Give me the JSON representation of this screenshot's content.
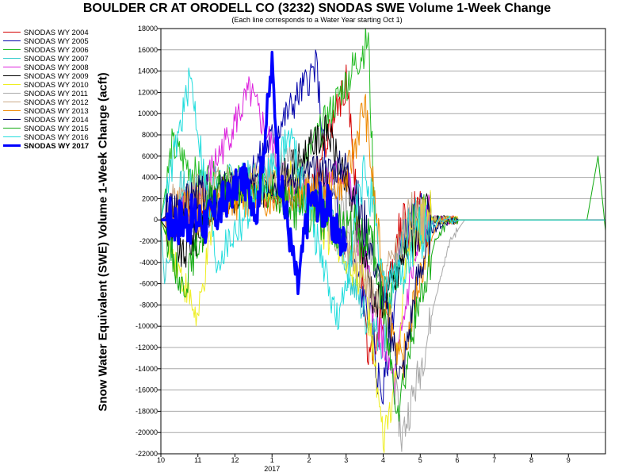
{
  "chart_data": {
    "type": "line",
    "title": "BOULDER CR AT ORODELL CO (3232) SNODAS SWE Volume 1-Week Change",
    "subtitle": "(Each line corresponds to a Water Year starting Oct 1)",
    "ylabel": "Snow Water Equivalent (SWE) Volume 1-Week Change (acft)",
    "xlabel": "",
    "ylim": [
      -22000,
      18000
    ],
    "y_ticks": [
      18000,
      16000,
      14000,
      12000,
      10000,
      8000,
      6000,
      4000,
      2000,
      0,
      -2000,
      -4000,
      -6000,
      -8000,
      -10000,
      -12000,
      -14000,
      -16000,
      -18000,
      -20000,
      -22000
    ],
    "y_tick_labels": [
      "18000",
      "16000",
      "14000",
      "12000",
      "10000",
      "8000",
      "6000",
      "4000",
      "2000",
      "0",
      "-2000",
      "-4000",
      "-6000",
      "-8000",
      "-10000",
      "-12000",
      "-14000",
      "-16000",
      "-18000",
      "-20000",
      "-22000"
    ],
    "xlim": [
      10,
      22
    ],
    "x_ticks": [
      10,
      11,
      12,
      13,
      14,
      15,
      16,
      17,
      18,
      19,
      20,
      21
    ],
    "x_tick_labels": [
      "10",
      "11",
      "12",
      "1",
      "2",
      "3",
      "4",
      "5",
      "6",
      "7",
      "8",
      "9"
    ],
    "x_year_label": "2017",
    "x_year_label_at": 13,
    "grid": true,
    "legend_placement": "left-outside",
    "series": [
      {
        "name": "SNODAS WY 2004",
        "color": "#d40000",
        "seed": 4,
        "key_points": [
          [
            10,
            0
          ],
          [
            12,
            3000
          ],
          [
            14,
            2500
          ],
          [
            15,
            12800
          ],
          [
            15.2,
            6000
          ],
          [
            15.6,
            -13500
          ],
          [
            16,
            -9000
          ],
          [
            16.4,
            -1500
          ],
          [
            16.8,
            0
          ],
          [
            22,
            0
          ]
        ]
      },
      {
        "name": "SNODAS WY 2005",
        "color": "#0000aa",
        "seed": 5,
        "key_points": [
          [
            10,
            0
          ],
          [
            12,
            2000
          ],
          [
            14.2,
            14500
          ],
          [
            14.5,
            3000
          ],
          [
            15.7,
            -10000
          ],
          [
            15.8,
            -14000
          ],
          [
            16,
            -16500
          ],
          [
            16.5,
            -2000
          ],
          [
            17,
            0
          ],
          [
            22,
            0
          ]
        ]
      },
      {
        "name": "SNODAS WY 2006",
        "color": "#22bb22",
        "seed": 6,
        "key_points": [
          [
            10,
            0
          ],
          [
            10.3,
            7000
          ],
          [
            11,
            4000
          ],
          [
            13.5,
            3000
          ],
          [
            15.6,
            17000
          ],
          [
            15.8,
            -4000
          ],
          [
            16.2,
            -8000
          ],
          [
            16.6,
            -1000
          ],
          [
            17,
            0
          ],
          [
            22,
            0
          ]
        ]
      },
      {
        "name": "SNODAS WY 2007",
        "color": "#33cccc",
        "seed": 7,
        "key_points": [
          [
            10,
            0
          ],
          [
            10.1,
            -6000
          ],
          [
            10.5,
            3000
          ],
          [
            12.5,
            4000
          ],
          [
            14.5,
            1000
          ],
          [
            15.5,
            -9000
          ],
          [
            16,
            -11500
          ],
          [
            16.5,
            -2000
          ],
          [
            17,
            0
          ],
          [
            22,
            0
          ]
        ]
      },
      {
        "name": "SNODAS WY 2008",
        "color": "#dd22dd",
        "seed": 8,
        "key_points": [
          [
            10,
            0
          ],
          [
            11,
            2000
          ],
          [
            12.4,
            12000
          ],
          [
            13.5,
            2500
          ],
          [
            15,
            4500
          ],
          [
            15.8,
            -9000
          ],
          [
            16.3,
            -15500
          ],
          [
            16.7,
            -6000
          ],
          [
            17.2,
            0
          ],
          [
            22,
            0
          ]
        ]
      },
      {
        "name": "SNODAS WY 2009",
        "color": "#000000",
        "seed": 9,
        "key_points": [
          [
            10,
            0
          ],
          [
            10.6,
            -3500
          ],
          [
            11.5,
            2000
          ],
          [
            13,
            3000
          ],
          [
            14.5,
            8500
          ],
          [
            15.2,
            1000
          ],
          [
            15.8,
            -8000
          ],
          [
            16.3,
            -6000
          ],
          [
            16.8,
            -1000
          ],
          [
            17.3,
            0
          ],
          [
            22,
            0
          ]
        ]
      },
      {
        "name": "SNODAS WY 2010",
        "color": "#eeee22",
        "seed": 10,
        "key_points": [
          [
            10,
            0
          ],
          [
            11,
            -9500
          ],
          [
            11.5,
            2000
          ],
          [
            13.5,
            4000
          ],
          [
            15.5,
            -6000
          ],
          [
            16,
            -21000
          ],
          [
            16.3,
            -16000
          ],
          [
            16.7,
            -2000
          ],
          [
            17.2,
            0
          ],
          [
            22,
            0
          ]
        ]
      },
      {
        "name": "SNODAS WY 2011",
        "color": "#aaaaaa",
        "seed": 11,
        "key_points": [
          [
            10,
            0
          ],
          [
            11.5,
            1500
          ],
          [
            13.5,
            6000
          ],
          [
            15.8,
            -3000
          ],
          [
            16.5,
            -20500
          ],
          [
            17,
            -14000
          ],
          [
            17.4,
            -7500
          ],
          [
            17.8,
            -2000
          ],
          [
            18.2,
            0
          ],
          [
            22,
            0
          ]
        ]
      },
      {
        "name": "SNODAS WY 2012",
        "color": "#ccaa88",
        "seed": 12,
        "key_points": [
          [
            10,
            0
          ],
          [
            11,
            3000
          ],
          [
            12.5,
            4500
          ],
          [
            14.2,
            2000
          ],
          [
            15.3,
            -4000
          ],
          [
            15.8,
            -8000
          ],
          [
            16.3,
            -3000
          ],
          [
            16.8,
            0
          ],
          [
            22,
            0
          ]
        ]
      },
      {
        "name": "SNODAS WY 2013",
        "color": "#ee8800",
        "seed": 13,
        "key_points": [
          [
            10,
            0
          ],
          [
            11.5,
            1500
          ],
          [
            13,
            2000
          ],
          [
            15,
            3500
          ],
          [
            15.5,
            11000
          ],
          [
            16,
            -6000
          ],
          [
            16.5,
            -14000
          ],
          [
            17,
            -5000
          ],
          [
            17.5,
            0
          ],
          [
            22,
            0
          ]
        ]
      },
      {
        "name": "SNODAS WY 2014",
        "color": "#000066",
        "seed": 14,
        "key_points": [
          [
            10,
            0
          ],
          [
            11,
            2500
          ],
          [
            13,
            3500
          ],
          [
            15,
            5000
          ],
          [
            15.7,
            -3000
          ],
          [
            16.5,
            -15000
          ],
          [
            16.9,
            -6000
          ],
          [
            17.3,
            -1000
          ],
          [
            17.8,
            0
          ],
          [
            22,
            0
          ]
        ]
      },
      {
        "name": "SNODAS WY 2015",
        "color": "#11aa11",
        "seed": 15,
        "key_points": [
          [
            10,
            0
          ],
          [
            10.6,
            -6500
          ],
          [
            11.5,
            3000
          ],
          [
            13,
            2500
          ],
          [
            15.7,
            -2000
          ],
          [
            16.4,
            -17500
          ],
          [
            16.9,
            -9000
          ],
          [
            17.4,
            -2000
          ],
          [
            17.8,
            0
          ],
          [
            21.5,
            0
          ],
          [
            21.8,
            6000
          ],
          [
            22,
            -1000
          ]
        ]
      },
      {
        "name": "SNODAS WY 2016",
        "color": "#22dddd",
        "seed": 16,
        "key_points": [
          [
            10,
            0
          ],
          [
            10.8,
            13500
          ],
          [
            11.5,
            -4000
          ],
          [
            13.5,
            8000
          ],
          [
            14.8,
            -10000
          ],
          [
            15.5,
            5000
          ],
          [
            16,
            -6000
          ],
          [
            16.6,
            -5000
          ],
          [
            17,
            -1000
          ],
          [
            17.5,
            0
          ],
          [
            22,
            0
          ]
        ]
      },
      {
        "name": "SNODAS WY 2017",
        "color": "#0000ff",
        "width": 3.5,
        "seed": 17,
        "key_points": [
          [
            10,
            0
          ],
          [
            10.5,
            0
          ],
          [
            11,
            0
          ],
          [
            11.3,
            -200
          ],
          [
            11.7,
            1500
          ],
          [
            12.2,
            4000
          ],
          [
            12.6,
            1000
          ],
          [
            13,
            14500
          ],
          [
            13.2,
            4000
          ],
          [
            13.5,
            -2000
          ],
          [
            13.7,
            -6500
          ],
          [
            14,
            2000
          ],
          [
            14.5,
            1000
          ],
          [
            14.9,
            -2500
          ],
          [
            15,
            0
          ]
        ]
      }
    ]
  }
}
